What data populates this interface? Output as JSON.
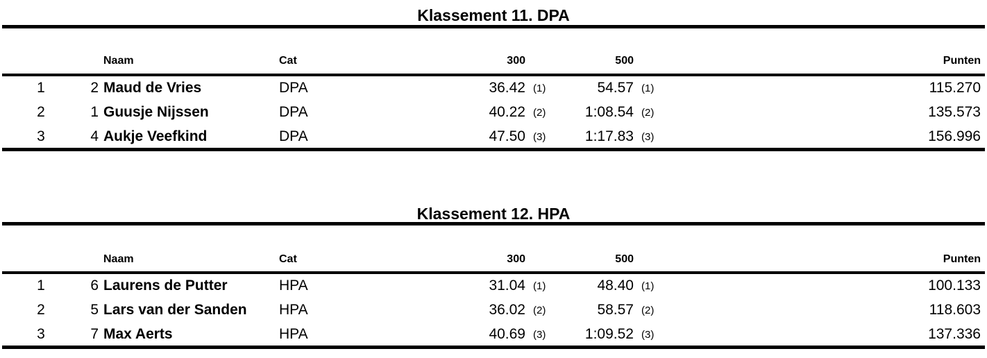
{
  "columns": {
    "naam": "Naam",
    "cat": "Cat",
    "d300": "300",
    "d500": "500",
    "punten": "Punten"
  },
  "sections": [
    {
      "title": "Klassement 11. DPA",
      "rows": [
        {
          "rank": "1",
          "startno": "2",
          "name": "Maud de Vries",
          "cat": "DPA",
          "t300": "36.42",
          "r300": "(1)",
          "t500": "54.57",
          "r500": "(1)",
          "points": "115.270"
        },
        {
          "rank": "2",
          "startno": "1",
          "name": "Guusje Nijssen",
          "cat": "DPA",
          "t300": "40.22",
          "r300": "(2)",
          "t500": "1:08.54",
          "r500": "(2)",
          "points": "135.573"
        },
        {
          "rank": "3",
          "startno": "4",
          "name": "Aukje Veefkind",
          "cat": "DPA",
          "t300": "47.50",
          "r300": "(3)",
          "t500": "1:17.83",
          "r500": "(3)",
          "points": "156.996"
        }
      ]
    },
    {
      "title": "Klassement 12. HPA",
      "rows": [
        {
          "rank": "1",
          "startno": "6",
          "name": "Laurens de Putter",
          "cat": "HPA",
          "t300": "31.04",
          "r300": "(1)",
          "t500": "48.40",
          "r500": "(1)",
          "points": "100.133"
        },
        {
          "rank": "2",
          "startno": "5",
          "name": "Lars van der Sanden",
          "cat": "HPA",
          "t300": "36.02",
          "r300": "(2)",
          "t500": "58.57",
          "r500": "(2)",
          "points": "118.603"
        },
        {
          "rank": "3",
          "startno": "7",
          "name": "Max Aerts",
          "cat": "HPA",
          "t300": "40.69",
          "r300": "(3)",
          "t500": "1:09.52",
          "r500": "(3)",
          "points": "137.336"
        }
      ]
    }
  ]
}
